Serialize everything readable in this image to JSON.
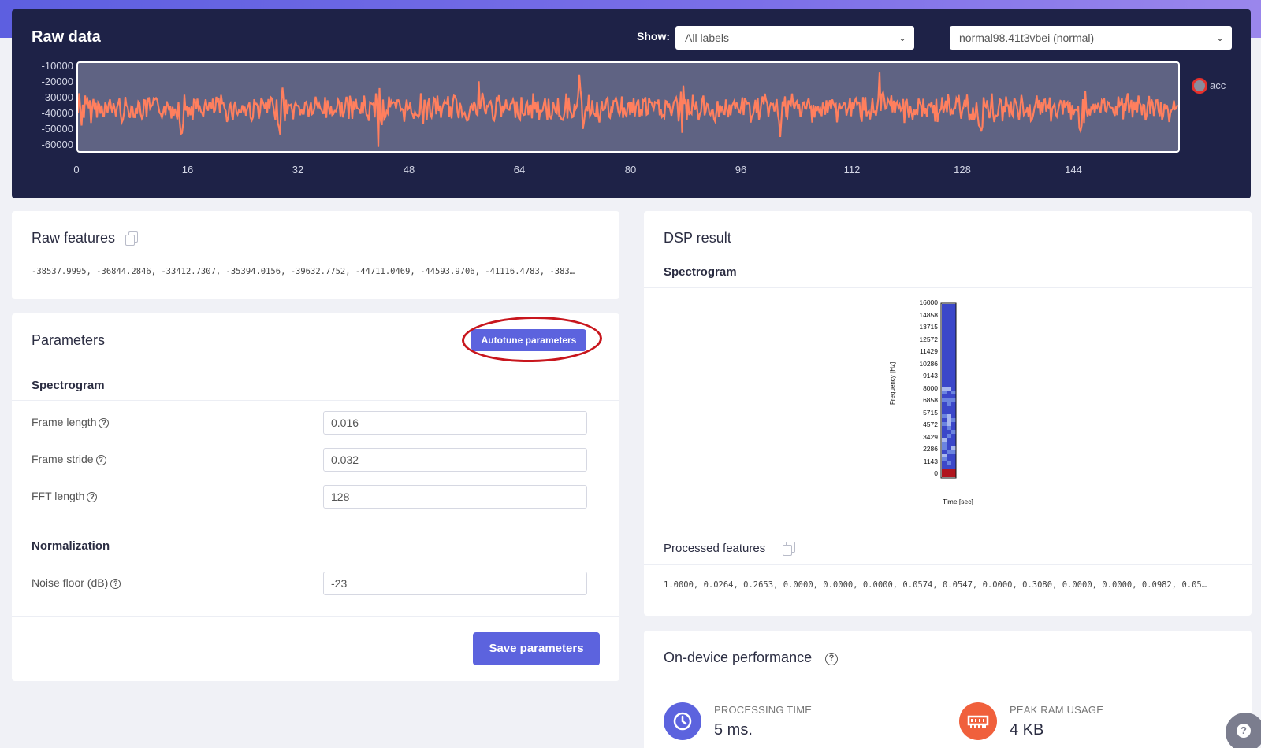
{
  "raw_data": {
    "title": "Raw data",
    "show_label": "Show:",
    "label_filter": "All labels",
    "sample_select": "normal98.41t3vbei (normal)",
    "legend": "acc",
    "y_ticks": [
      "-10000",
      "-20000",
      "-30000",
      "-40000",
      "-50000",
      "-60000"
    ],
    "x_ticks": [
      "0",
      "16",
      "32",
      "48",
      "64",
      "80",
      "96",
      "112",
      "128",
      "144"
    ],
    "colors": {
      "signal": "#ff7f5e",
      "plot_bg": "#5f6383"
    }
  },
  "raw_features": {
    "title": "Raw features",
    "values": "-38537.9995, -36844.2846, -33412.7307, -35394.0156, -39632.7752, -44711.0469, -44593.9706, -41116.4783, -383…"
  },
  "parameters": {
    "title": "Parameters",
    "autotune_label": "Autotune parameters",
    "spectrogram_heading": "Spectrogram",
    "fields": [
      {
        "label": "Frame length",
        "value": "0.016"
      },
      {
        "label": "Frame stride",
        "value": "0.032"
      },
      {
        "label": "FFT length",
        "value": "128"
      }
    ],
    "normalization_heading": "Normalization",
    "noise_floor": {
      "label": "Noise floor (dB)",
      "value": "-23"
    },
    "save_label": "Save parameters"
  },
  "dsp_result": {
    "title": "DSP result",
    "spectrogram_heading": "Spectrogram",
    "freq_ticks": [
      "16000",
      "14858",
      "13715",
      "12572",
      "11429",
      "10286",
      "9143",
      "8000",
      "6858",
      "5715",
      "4572",
      "3429",
      "2286",
      "1143",
      "0"
    ],
    "freq_axis_label": "Frequency [Hz]",
    "time_axis_label": "Time [sec]",
    "processed_title": "Processed features",
    "processed_values": "1.0000, 0.0264, 0.2653, 0.0000, 0.0000, 0.0000, 0.0574, 0.0547, 0.0000, 0.3080, 0.0000, 0.0000, 0.0982, 0.05…"
  },
  "performance": {
    "title": "On-device performance",
    "processing_label": "PROCESSING TIME",
    "processing_value": "5 ms.",
    "ram_label": "PEAK RAM USAGE",
    "ram_value": "4 KB",
    "colors": {
      "time_icon": "#5c63de",
      "ram_icon": "#f0603c"
    }
  }
}
